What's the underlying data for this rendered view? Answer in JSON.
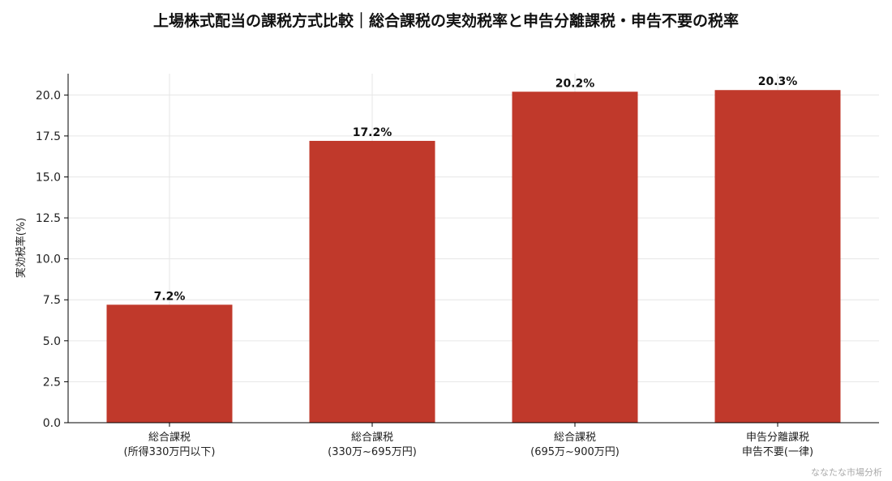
{
  "chart_data": {
    "type": "bar",
    "title": "上場株式配当の課税方式比較｜総合課税の実効税率と申告分離課税・申告不要の税率",
    "ylabel": "実効税率(%)",
    "xlabel": "",
    "ylim": [
      0,
      21.3
    ],
    "yticks": [
      "0.0",
      "2.5",
      "5.0",
      "7.5",
      "10.0",
      "12.5",
      "15.0",
      "17.5",
      "20.0"
    ],
    "ytick_values": [
      0,
      2.5,
      5,
      7.5,
      10,
      12.5,
      15,
      17.5,
      20
    ],
    "categories": [
      [
        "総合課税",
        "(所得330万円以下)"
      ],
      [
        "総合課税",
        "(330万~695万円)"
      ],
      [
        "総合課税",
        "(695万~900万円)"
      ],
      [
        "申告分離課税",
        "申告不要(一律)"
      ]
    ],
    "values": [
      7.2,
      17.2,
      20.2,
      20.3
    ],
    "value_labels": [
      "7.2%",
      "17.2%",
      "20.2%",
      "20.3%"
    ],
    "bar_color": "#c0392b",
    "grid": true,
    "watermark": "ななたな市場分析"
  }
}
